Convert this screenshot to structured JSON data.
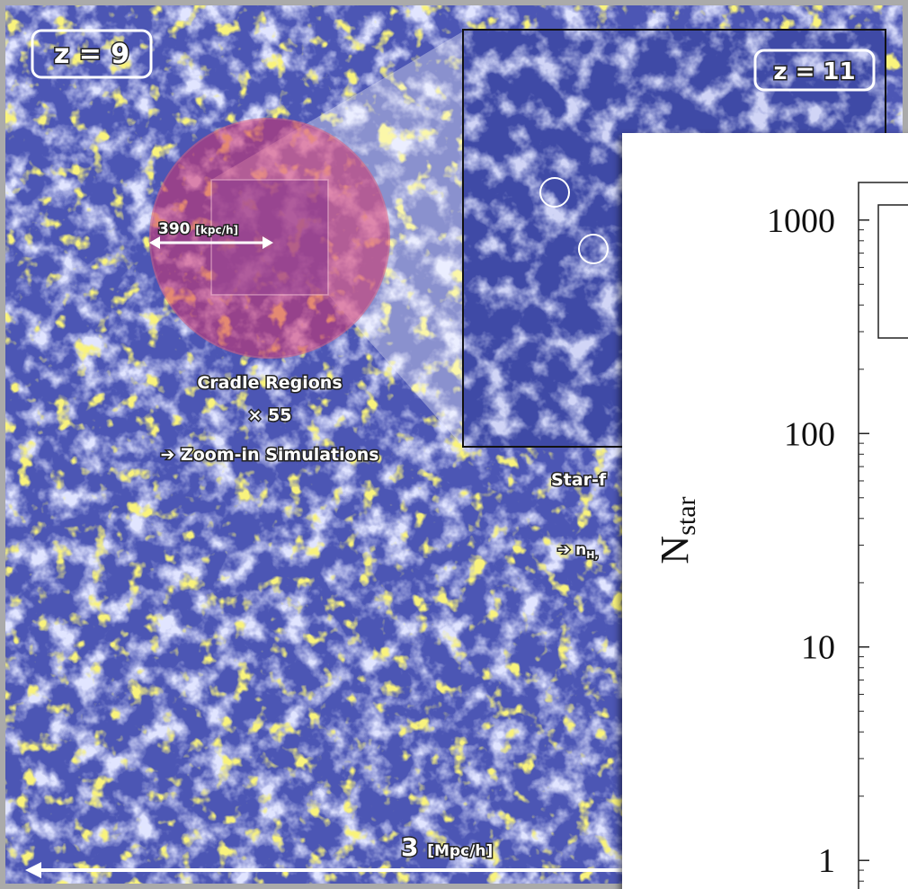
{
  "labels": {
    "z_main": "z = 9",
    "z_inset": "z = 11",
    "scale_small": "390",
    "scale_small_unit": "[kpc/h]",
    "cradle": "Cradle Regions",
    "count": "× 55",
    "zoom": "➔ Zoom-in Simulations",
    "star": "Star-f",
    "nh": "➔ n",
    "nh_sub": "H,",
    "scale_big": "3",
    "scale_big_unit": "[Mpc/h]"
  },
  "chart_data": {
    "type": "line",
    "y_label": "N",
    "y_label_sub": "star",
    "log_y": true,
    "ylim": [
      0.7,
      1500
    ],
    "yticks": [
      1,
      10,
      100,
      1000
    ]
  }
}
